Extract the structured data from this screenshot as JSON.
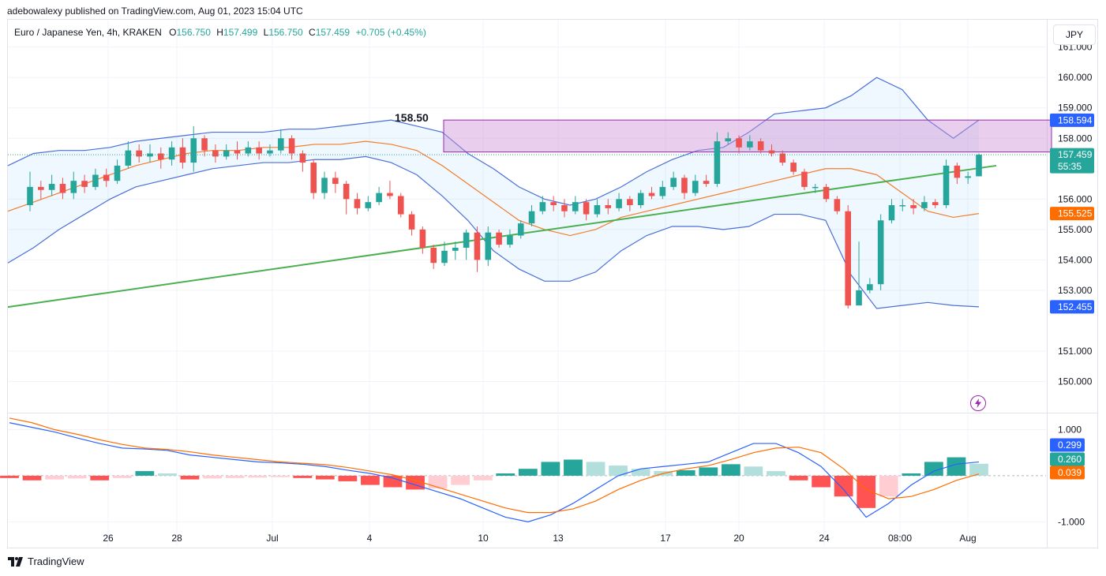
{
  "header": {
    "attribution": "adebowalexy published on TradingView.com, Aug 01, 2023 15:04 UTC"
  },
  "legend": {
    "symbol": "Euro / Japanese Yen, 4h, KRAKEN",
    "o_label": "O",
    "o_value": "156.750",
    "h_label": "H",
    "h_value": "157.499",
    "l_label": "L",
    "l_value": "156.750",
    "c_label": "C",
    "c_value": "157.459",
    "change": "+0.705 (+0.45%)"
  },
  "currency_button": "JPY",
  "footer": {
    "brand": "TradingView"
  },
  "colors": {
    "up": "#26a69a",
    "down": "#ef5350",
    "band": "#4a6fd9",
    "basis": "#f57c2a",
    "trendline": "#4caf50",
    "zone_fill": "#e1bee7",
    "zone_border": "#9c27b0",
    "macd_line": "#2962ff",
    "signal_line": "#ff6d00"
  },
  "icons": {
    "flash": "lightning-icon",
    "logo": "tradingview-logo-icon"
  },
  "chart_data": {
    "type": "candlestick",
    "price_axis": {
      "ticks": [
        "161.000",
        "160.000",
        "159.000",
        "158.000",
        "156.000",
        "155.000",
        "154.000",
        "153.000",
        "151.000",
        "150.000"
      ],
      "ylim": [
        149.0,
        161.9
      ]
    },
    "time_axis": {
      "ticks": [
        "26",
        "28",
        "Jul",
        "4",
        "10",
        "13",
        "17",
        "20",
        "24",
        "08:00",
        "Aug"
      ]
    },
    "price_labels": [
      {
        "text": "158.594",
        "value": 158.594,
        "color": "#2962ff"
      },
      {
        "text": "157.459",
        "subtext": "55:35",
        "value": 157.459,
        "color": "#26a69a"
      },
      {
        "text": "155.525",
        "value": 155.525,
        "color": "#ff6d00"
      },
      {
        "text": "152.455",
        "value": 152.455,
        "color": "#2962ff"
      }
    ],
    "annotations": [
      {
        "text": "158.50",
        "value": 158.5
      }
    ],
    "resistance_zone": {
      "top": 158.6,
      "bottom": 157.55
    },
    "trendline": {
      "start": 152.45,
      "end": 157.1
    },
    "bollinger": {
      "upper": [
        157.1,
        157.5,
        157.6,
        157.6,
        157.7,
        157.9,
        158.0,
        158.1,
        158.2,
        158.2,
        158.2,
        158.3,
        158.3,
        158.4,
        158.5,
        158.6,
        158.4,
        158.2,
        157.5,
        157.0,
        156.4,
        156.0,
        155.8,
        156.0,
        156.4,
        156.9,
        157.3,
        157.6,
        157.7,
        158.2,
        158.8,
        158.9,
        159.0,
        159.4,
        160.0,
        159.6,
        158.6,
        158.0,
        158.6
      ],
      "basis": [
        155.6,
        155.9,
        156.2,
        156.5,
        156.8,
        157.1,
        157.3,
        157.5,
        157.6,
        157.6,
        157.7,
        157.7,
        157.8,
        157.8,
        157.9,
        157.8,
        157.6,
        157.1,
        156.5,
        155.9,
        155.3,
        155.0,
        154.8,
        155.0,
        155.4,
        155.6,
        155.8,
        156.0,
        156.2,
        156.4,
        156.6,
        156.8,
        157.0,
        157.0,
        156.8,
        156.2,
        155.6,
        155.4,
        155.525
      ],
      "lower": [
        153.9,
        154.4,
        155.0,
        155.5,
        156.0,
        156.4,
        156.6,
        156.8,
        157.0,
        157.1,
        157.2,
        157.2,
        157.3,
        157.3,
        157.4,
        157.2,
        156.8,
        156.1,
        155.3,
        154.3,
        153.7,
        153.3,
        153.3,
        153.6,
        154.3,
        154.8,
        155.1,
        155.1,
        155.0,
        155.1,
        155.5,
        155.5,
        155.3,
        153.5,
        152.4,
        152.5,
        152.6,
        152.5,
        152.455
      ]
    },
    "candles": [
      [
        155.8,
        156.4,
        156.9,
        155.6
      ],
      [
        156.4,
        156.3,
        156.6,
        156.0
      ],
      [
        156.3,
        156.5,
        156.8,
        156.1
      ],
      [
        156.5,
        156.2,
        156.7,
        156.0
      ],
      [
        156.2,
        156.6,
        156.9,
        156.0
      ],
      [
        156.6,
        156.4,
        156.8,
        156.2
      ],
      [
        156.4,
        156.8,
        157.0,
        156.3
      ],
      [
        156.8,
        156.6,
        157.0,
        156.4
      ],
      [
        156.6,
        157.1,
        157.3,
        156.5
      ],
      [
        157.1,
        157.6,
        157.9,
        157.0
      ],
      [
        157.6,
        157.4,
        157.8,
        157.2
      ],
      [
        157.4,
        157.5,
        157.8,
        157.2
      ],
      [
        157.5,
        157.3,
        157.7,
        157.0
      ],
      [
        157.3,
        157.7,
        157.9,
        157.1
      ],
      [
        157.7,
        157.2,
        158.0,
        157.0
      ],
      [
        157.2,
        158.0,
        158.4,
        156.9
      ],
      [
        158.0,
        157.6,
        158.1,
        157.4
      ],
      [
        157.6,
        157.4,
        157.8,
        157.2
      ],
      [
        157.4,
        157.6,
        157.8,
        157.3
      ],
      [
        157.6,
        157.5,
        157.9,
        157.3
      ],
      [
        157.5,
        157.7,
        157.9,
        157.4
      ],
      [
        157.7,
        157.5,
        157.9,
        157.3
      ],
      [
        157.5,
        157.6,
        157.8,
        157.4
      ],
      [
        157.6,
        158.0,
        158.3,
        157.5
      ],
      [
        158.0,
        157.5,
        158.1,
        157.3
      ],
      [
        157.5,
        157.2,
        157.6,
        156.9
      ],
      [
        157.2,
        156.2,
        157.3,
        156.0
      ],
      [
        156.2,
        156.7,
        156.9,
        156.0
      ],
      [
        156.7,
        156.5,
        156.9,
        156.2
      ],
      [
        156.5,
        156.0,
        156.6,
        155.5
      ],
      [
        156.0,
        155.7,
        156.2,
        155.5
      ],
      [
        155.7,
        155.9,
        156.1,
        155.6
      ],
      [
        155.9,
        156.2,
        156.4,
        155.8
      ],
      [
        156.2,
        156.1,
        156.6,
        156.0
      ],
      [
        156.1,
        155.5,
        156.2,
        155.4
      ],
      [
        155.5,
        155.0,
        155.6,
        154.8
      ],
      [
        155.0,
        154.4,
        155.1,
        154.2
      ],
      [
        154.4,
        153.9,
        154.5,
        153.7
      ],
      [
        153.9,
        154.3,
        154.6,
        153.8
      ],
      [
        154.3,
        154.4,
        154.6,
        154.0
      ],
      [
        154.4,
        154.9,
        155.0,
        154.0
      ],
      [
        154.9,
        154.0,
        155.1,
        153.6
      ],
      [
        154.0,
        154.9,
        155.1,
        153.8
      ],
      [
        154.9,
        154.5,
        155.0,
        154.4
      ],
      [
        154.5,
        154.8,
        155.0,
        154.4
      ],
      [
        154.8,
        155.2,
        155.3,
        154.7
      ],
      [
        155.2,
        155.6,
        155.8,
        155.1
      ],
      [
        155.6,
        155.9,
        156.1,
        155.5
      ],
      [
        155.9,
        155.8,
        156.1,
        155.6
      ],
      [
        155.8,
        155.6,
        156.0,
        155.4
      ],
      [
        155.6,
        155.9,
        156.1,
        155.5
      ],
      [
        155.9,
        155.5,
        156.0,
        155.3
      ],
      [
        155.5,
        155.8,
        156.0,
        155.4
      ],
      [
        155.8,
        155.7,
        156.0,
        155.5
      ],
      [
        155.7,
        156.0,
        156.2,
        155.6
      ],
      [
        156.0,
        155.8,
        156.1,
        155.6
      ],
      [
        155.8,
        156.2,
        156.3,
        155.7
      ],
      [
        156.2,
        156.1,
        156.4,
        156.0
      ],
      [
        156.1,
        156.4,
        156.6,
        156.0
      ],
      [
        156.4,
        156.7,
        156.9,
        156.3
      ],
      [
        156.7,
        156.2,
        156.8,
        156.0
      ],
      [
        156.2,
        156.6,
        156.8,
        156.1
      ],
      [
        156.6,
        156.5,
        156.8,
        156.4
      ],
      [
        156.5,
        157.9,
        158.2,
        156.4
      ],
      [
        157.9,
        158.0,
        158.2,
        157.8
      ],
      [
        158.0,
        157.7,
        158.1,
        157.5
      ],
      [
        157.7,
        157.9,
        158.1,
        157.6
      ],
      [
        157.9,
        157.6,
        158.0,
        157.5
      ],
      [
        157.6,
        157.5,
        157.8,
        157.4
      ],
      [
        157.5,
        157.2,
        157.6,
        157.1
      ],
      [
        157.2,
        156.9,
        157.3,
        156.8
      ],
      [
        156.9,
        156.4,
        157.0,
        156.3
      ],
      [
        156.4,
        156.4,
        156.5,
        156.2
      ],
      [
        156.4,
        156.0,
        156.5,
        155.9
      ],
      [
        156.0,
        155.6,
        156.1,
        155.5
      ],
      [
        155.6,
        152.5,
        155.8,
        152.4
      ],
      [
        152.5,
        153.0,
        154.6,
        152.8
      ],
      [
        153.0,
        153.2,
        153.4,
        152.9
      ],
      [
        153.2,
        155.3,
        155.5,
        153.0
      ],
      [
        155.3,
        155.8,
        156.0,
        155.2
      ],
      [
        155.8,
        155.8,
        156.0,
        155.6
      ],
      [
        155.8,
        155.7,
        156.0,
        155.5
      ],
      [
        155.7,
        155.9,
        156.1,
        155.6
      ],
      [
        155.9,
        155.8,
        156.0,
        155.7
      ],
      [
        155.8,
        157.1,
        157.3,
        155.7
      ],
      [
        157.1,
        156.7,
        157.2,
        156.5
      ],
      [
        156.7,
        156.75,
        156.9,
        156.5
      ],
      [
        156.75,
        157.459,
        157.499,
        156.75
      ]
    ],
    "macd": {
      "axis_ticks": [
        "1.000",
        "-1.000"
      ],
      "ylim": [
        -1.2,
        1.3
      ],
      "labels": [
        {
          "text": "0.299",
          "value": 0.299,
          "color": "#2962ff"
        },
        {
          "text": "0.260",
          "value": 0.26,
          "color": "#26a69a"
        },
        {
          "text": "0.039",
          "value": 0.039,
          "color": "#ff6d00"
        }
      ],
      "macd_line": [
        1.15,
        1.05,
        0.95,
        0.82,
        0.7,
        0.6,
        0.58,
        0.55,
        0.45,
        0.4,
        0.35,
        0.3,
        0.28,
        0.25,
        0.2,
        0.12,
        0.05,
        -0.05,
        -0.2,
        -0.35,
        -0.5,
        -0.7,
        -0.9,
        -1.0,
        -0.85,
        -0.6,
        -0.3,
        0.0,
        0.15,
        0.2,
        0.25,
        0.3,
        0.5,
        0.7,
        0.7,
        0.5,
        0.2,
        -0.3,
        -0.9,
        -0.6,
        -0.2,
        0.1,
        0.25,
        0.299
      ],
      "signal_line": [
        1.25,
        1.15,
        1.0,
        0.9,
        0.78,
        0.68,
        0.6,
        0.57,
        0.52,
        0.45,
        0.4,
        0.35,
        0.3,
        0.27,
        0.24,
        0.18,
        0.1,
        0.02,
        -0.1,
        -0.25,
        -0.4,
        -0.55,
        -0.7,
        -0.8,
        -0.8,
        -0.72,
        -0.55,
        -0.3,
        -0.1,
        0.05,
        0.15,
        0.22,
        0.35,
        0.5,
        0.6,
        0.62,
        0.5,
        0.15,
        -0.3,
        -0.5,
        -0.45,
        -0.3,
        -0.1,
        0.039
      ],
      "histogram": [
        -0.05,
        -0.1,
        -0.08,
        -0.06,
        -0.1,
        -0.05,
        0.1,
        0.05,
        -0.08,
        -0.06,
        -0.05,
        -0.04,
        -0.03,
        -0.05,
        -0.08,
        -0.12,
        -0.2,
        -0.25,
        -0.3,
        -0.28,
        -0.2,
        -0.1,
        0.05,
        0.15,
        0.3,
        0.35,
        0.3,
        0.22,
        0.15,
        0.1,
        0.12,
        0.18,
        0.25,
        0.2,
        0.1,
        -0.1,
        -0.25,
        -0.45,
        -0.7,
        -0.45,
        0.05,
        0.3,
        0.4,
        0.26
      ]
    }
  }
}
